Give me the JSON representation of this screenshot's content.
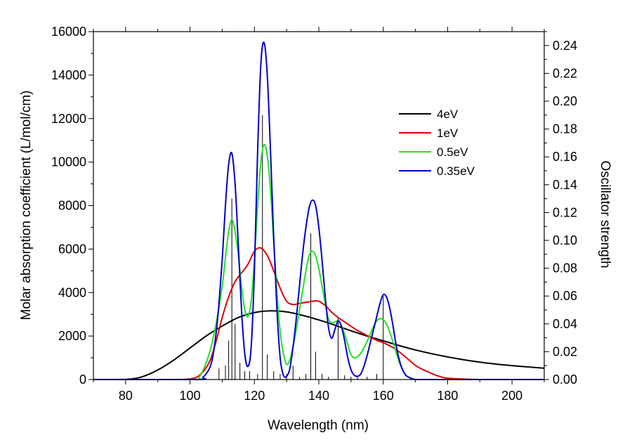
{
  "chart_data": {
    "type": "line",
    "xlabel": "Wavelength (nm)",
    "ylabel": "Molar absorption coefficient (L/mol/cm)",
    "y2label": "Oscillator strength",
    "xlim": [
      70,
      210
    ],
    "ylim": [
      0,
      16000
    ],
    "y2lim": [
      0,
      0.25
    ],
    "x_ticks": [
      "80",
      "100",
      "120",
      "140",
      "160",
      "180",
      "200"
    ],
    "y_ticks": [
      "0",
      "2000",
      "4000",
      "6000",
      "8000",
      "10000",
      "12000",
      "14000",
      "16000"
    ],
    "y2_ticks": [
      "0.00",
      "0.02",
      "0.04",
      "0.06",
      "0.08",
      "0.10",
      "0.12",
      "0.14",
      "0.16",
      "0.18",
      "0.20",
      "0.22",
      "0.24"
    ],
    "grid": false,
    "legend_position": "top-right",
    "colors": {
      "4eV": "#000000",
      "1eV": "#e00000",
      "0.5eV": "#22e022",
      "0.35eV": "#0000cc",
      "sticks": "#000000"
    },
    "series": [
      {
        "name": "4eV",
        "x": [
          70,
          80,
          85,
          90,
          95,
          100,
          105,
          110,
          115,
          120,
          125,
          130,
          135,
          140,
          145,
          150,
          155,
          160,
          165,
          170,
          175,
          180,
          185,
          190,
          195,
          200,
          205,
          210
        ],
        "values": [
          0,
          10,
          120,
          440,
          900,
          1450,
          2000,
          2460,
          2850,
          3080,
          3160,
          3110,
          2950,
          2740,
          2500,
          2240,
          2000,
          1780,
          1560,
          1360,
          1190,
          1040,
          910,
          800,
          710,
          640,
          580,
          520
        ]
      },
      {
        "name": "1eV",
        "x": [
          95,
          100,
          103,
          106,
          108,
          110,
          112,
          114,
          116,
          118,
          120,
          122,
          124,
          126,
          128,
          130,
          132,
          134,
          136,
          138,
          140,
          142,
          144,
          146,
          148,
          150,
          152,
          154,
          156,
          158,
          160,
          162,
          164,
          166,
          168,
          170,
          172,
          174,
          176,
          178,
          180,
          185,
          190,
          195,
          200,
          210
        ],
        "values": [
          0,
          30,
          200,
          800,
          1700,
          2850,
          3800,
          4500,
          4900,
          5300,
          5900,
          6050,
          5700,
          5000,
          4200,
          3600,
          3450,
          3500,
          3550,
          3600,
          3600,
          3400,
          3100,
          2850,
          2650,
          2450,
          2250,
          2100,
          1950,
          1800,
          1700,
          1550,
          1380,
          1150,
          900,
          650,
          480,
          350,
          220,
          120,
          60,
          20,
          0,
          0,
          0,
          0
        ]
      },
      {
        "name": "0.5eV",
        "x": [
          70,
          100,
          103,
          106,
          108,
          110,
          111,
          112,
          113,
          114,
          115,
          116,
          117,
          118,
          119,
          120,
          121,
          122,
          123,
          124,
          125,
          126,
          127,
          128,
          129,
          130,
          131,
          132,
          133,
          134,
          135,
          136,
          137,
          138,
          139,
          140,
          141,
          142,
          143,
          144,
          145,
          146,
          147,
          148,
          149,
          150,
          151,
          152,
          153,
          154,
          155,
          156,
          157,
          158,
          159,
          160,
          161,
          162,
          163,
          164,
          165,
          166,
          167,
          168,
          170,
          172,
          175,
          180,
          210
        ],
        "values": [
          0,
          0,
          150,
          1200,
          2500,
          4300,
          5600,
          6800,
          7350,
          6800,
          5700,
          4300,
          3200,
          2900,
          3600,
          5500,
          8000,
          10000,
          10800,
          10300,
          8700,
          6300,
          4000,
          2200,
          1200,
          700,
          900,
          1500,
          2300,
          3200,
          4100,
          5000,
          5700,
          5900,
          5700,
          5100,
          4300,
          3500,
          2800,
          2600,
          2650,
          2700,
          2500,
          2100,
          1600,
          1150,
          1000,
          1050,
          1200,
          1450,
          1750,
          2100,
          2450,
          2700,
          2800,
          2750,
          2550,
          2200,
          1750,
          1250,
          800,
          450,
          200,
          100,
          0,
          0,
          0,
          0,
          0
        ]
      },
      {
        "name": "0.35eV",
        "x": [
          70,
          102,
          104,
          106,
          107,
          108,
          109,
          110,
          111,
          112,
          113,
          114,
          115,
          116,
          117,
          118,
          119,
          120,
          121,
          122,
          123,
          124,
          125,
          126,
          127,
          128,
          129,
          130,
          131,
          132,
          133,
          134,
          135,
          136,
          137,
          138,
          139,
          140,
          141,
          142,
          143,
          144,
          145,
          146,
          147,
          148,
          149,
          150,
          151,
          152,
          153,
          154,
          155,
          156,
          157,
          158,
          159,
          160,
          161,
          162,
          163,
          164,
          165,
          166,
          167,
          168,
          170,
          175,
          210
        ],
        "values": [
          0,
          0,
          100,
          500,
          1000,
          2000,
          3500,
          5500,
          8000,
          9900,
          10400,
          9000,
          6200,
          3200,
          1200,
          600,
          1500,
          5000,
          10500,
          14500,
          15500,
          14000,
          10500,
          6500,
          3200,
          1000,
          200,
          150,
          500,
          1500,
          2800,
          4300,
          5800,
          7000,
          7900,
          8250,
          8000,
          7000,
          5500,
          3800,
          2400,
          1900,
          2300,
          2700,
          2450,
          1800,
          1000,
          450,
          200,
          150,
          250,
          600,
          1100,
          1700,
          2300,
          2900,
          3500,
          3900,
          3800,
          3300,
          2500,
          1600,
          900,
          450,
          200,
          100,
          0,
          0,
          0
        ]
      }
    ],
    "oscillator_sticks": {
      "x": [
        109,
        111,
        112,
        113,
        114,
        115.5,
        117,
        118.5,
        121,
        122.5,
        124,
        126,
        128,
        130,
        132,
        134,
        136,
        137.5,
        139,
        141,
        143,
        146,
        148,
        150,
        152,
        155,
        158,
        160
      ],
      "values": [
        0.008,
        0.01,
        0.028,
        0.13,
        0.04,
        0.012,
        0.006,
        0.006,
        0.004,
        0.19,
        0.018,
        0.006,
        0.004,
        0.004,
        0.01,
        0.002,
        0.004,
        0.105,
        0.02,
        0.004,
        0.002,
        0.044,
        0.003,
        0.002,
        0.002,
        0.002,
        0.004,
        0.06
      ]
    }
  }
}
